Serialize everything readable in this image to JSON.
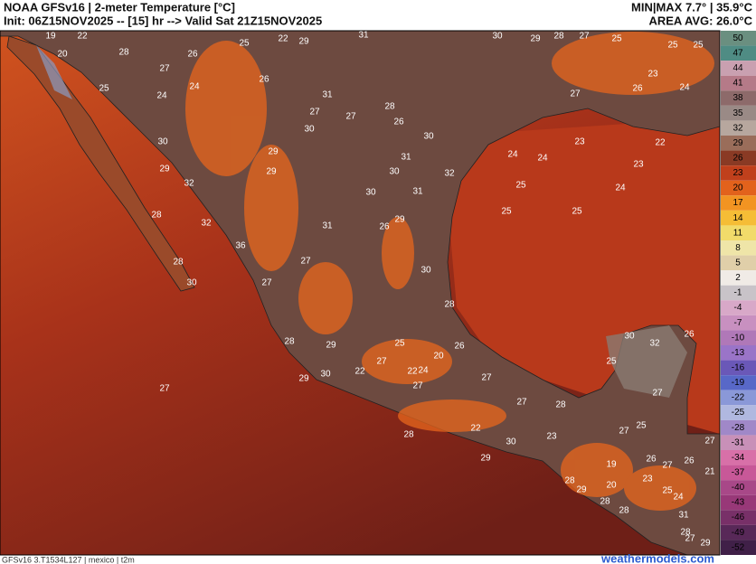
{
  "header": {
    "title": "NOAA GFSv16 | 2-meter Temperature [°C]",
    "init": "Init: 06Z15NOV2025 -- [15] hr --> Valid Sat 21Z15NOV2025",
    "minmax": "MIN|MAX 7.7° | 35.9°C",
    "area_avg": "AREA AVG: 26.0°C"
  },
  "footer": {
    "model": "GFSv16 3.T1534L127 | mexico | t2m",
    "site": "weathermodels.com"
  },
  "colorbar": {
    "ticks": [
      50,
      47,
      44,
      41,
      38,
      35,
      32,
      29,
      26,
      23,
      20,
      17,
      14,
      11,
      8,
      5,
      2,
      -1,
      -4,
      -7,
      -10,
      -13,
      -16,
      -19,
      -22,
      -25,
      -28,
      -31,
      -34,
      -37,
      -40,
      -43,
      -46,
      -49,
      -52
    ],
    "colors": [
      "#6a8f80",
      "#4f8c84",
      "#c9a0b0",
      "#b57a88",
      "#8d6a6a",
      "#9a8a86",
      "#b7a79e",
      "#9a6d5a",
      "#8a3a24",
      "#c0401c",
      "#e2621c",
      "#f29422",
      "#f5bd36",
      "#f1db6a",
      "#efe5a8",
      "#e0cfa9",
      "#f0ebe6",
      "#c8c3c8",
      "#d8a8c8",
      "#c890c0",
      "#b078b8",
      "#9a74c8",
      "#6a58b8",
      "#5868c8",
      "#8a98d8",
      "#b0b8e0",
      "#a088c8",
      "#c890b8",
      "#d870a8",
      "#c85898",
      "#a84888",
      "#983878",
      "#783068",
      "#582858",
      "#402048"
    ]
  },
  "map_labels": [
    27,
    28,
    28,
    30,
    32,
    36,
    32,
    29,
    30,
    30,
    29,
    31,
    30,
    26,
    29,
    30,
    28,
    27,
    27,
    28,
    29,
    29,
    30,
    22,
    27,
    25,
    22,
    24,
    20,
    27,
    26,
    27,
    27,
    28,
    22,
    30,
    29,
    28,
    23,
    19,
    20,
    27,
    25,
    30,
    32,
    25,
    27,
    26,
    25,
    25,
    24,
    23,
    22,
    24,
    24,
    23,
    25,
    26,
    25,
    22,
    29,
    31,
    30,
    29,
    28,
    27,
    25,
    25,
    25,
    23,
    24,
    26,
    27,
    31,
    27,
    28,
    26,
    30,
    31,
    30,
    32,
    31,
    27,
    29,
    25,
    22,
    20,
    19,
    24,
    27,
    24,
    26,
    28,
    27,
    26,
    21,
    26,
    27,
    23,
    28,
    29,
    28,
    28,
    31,
    24,
    25,
    28,
    27,
    29
  ]
}
